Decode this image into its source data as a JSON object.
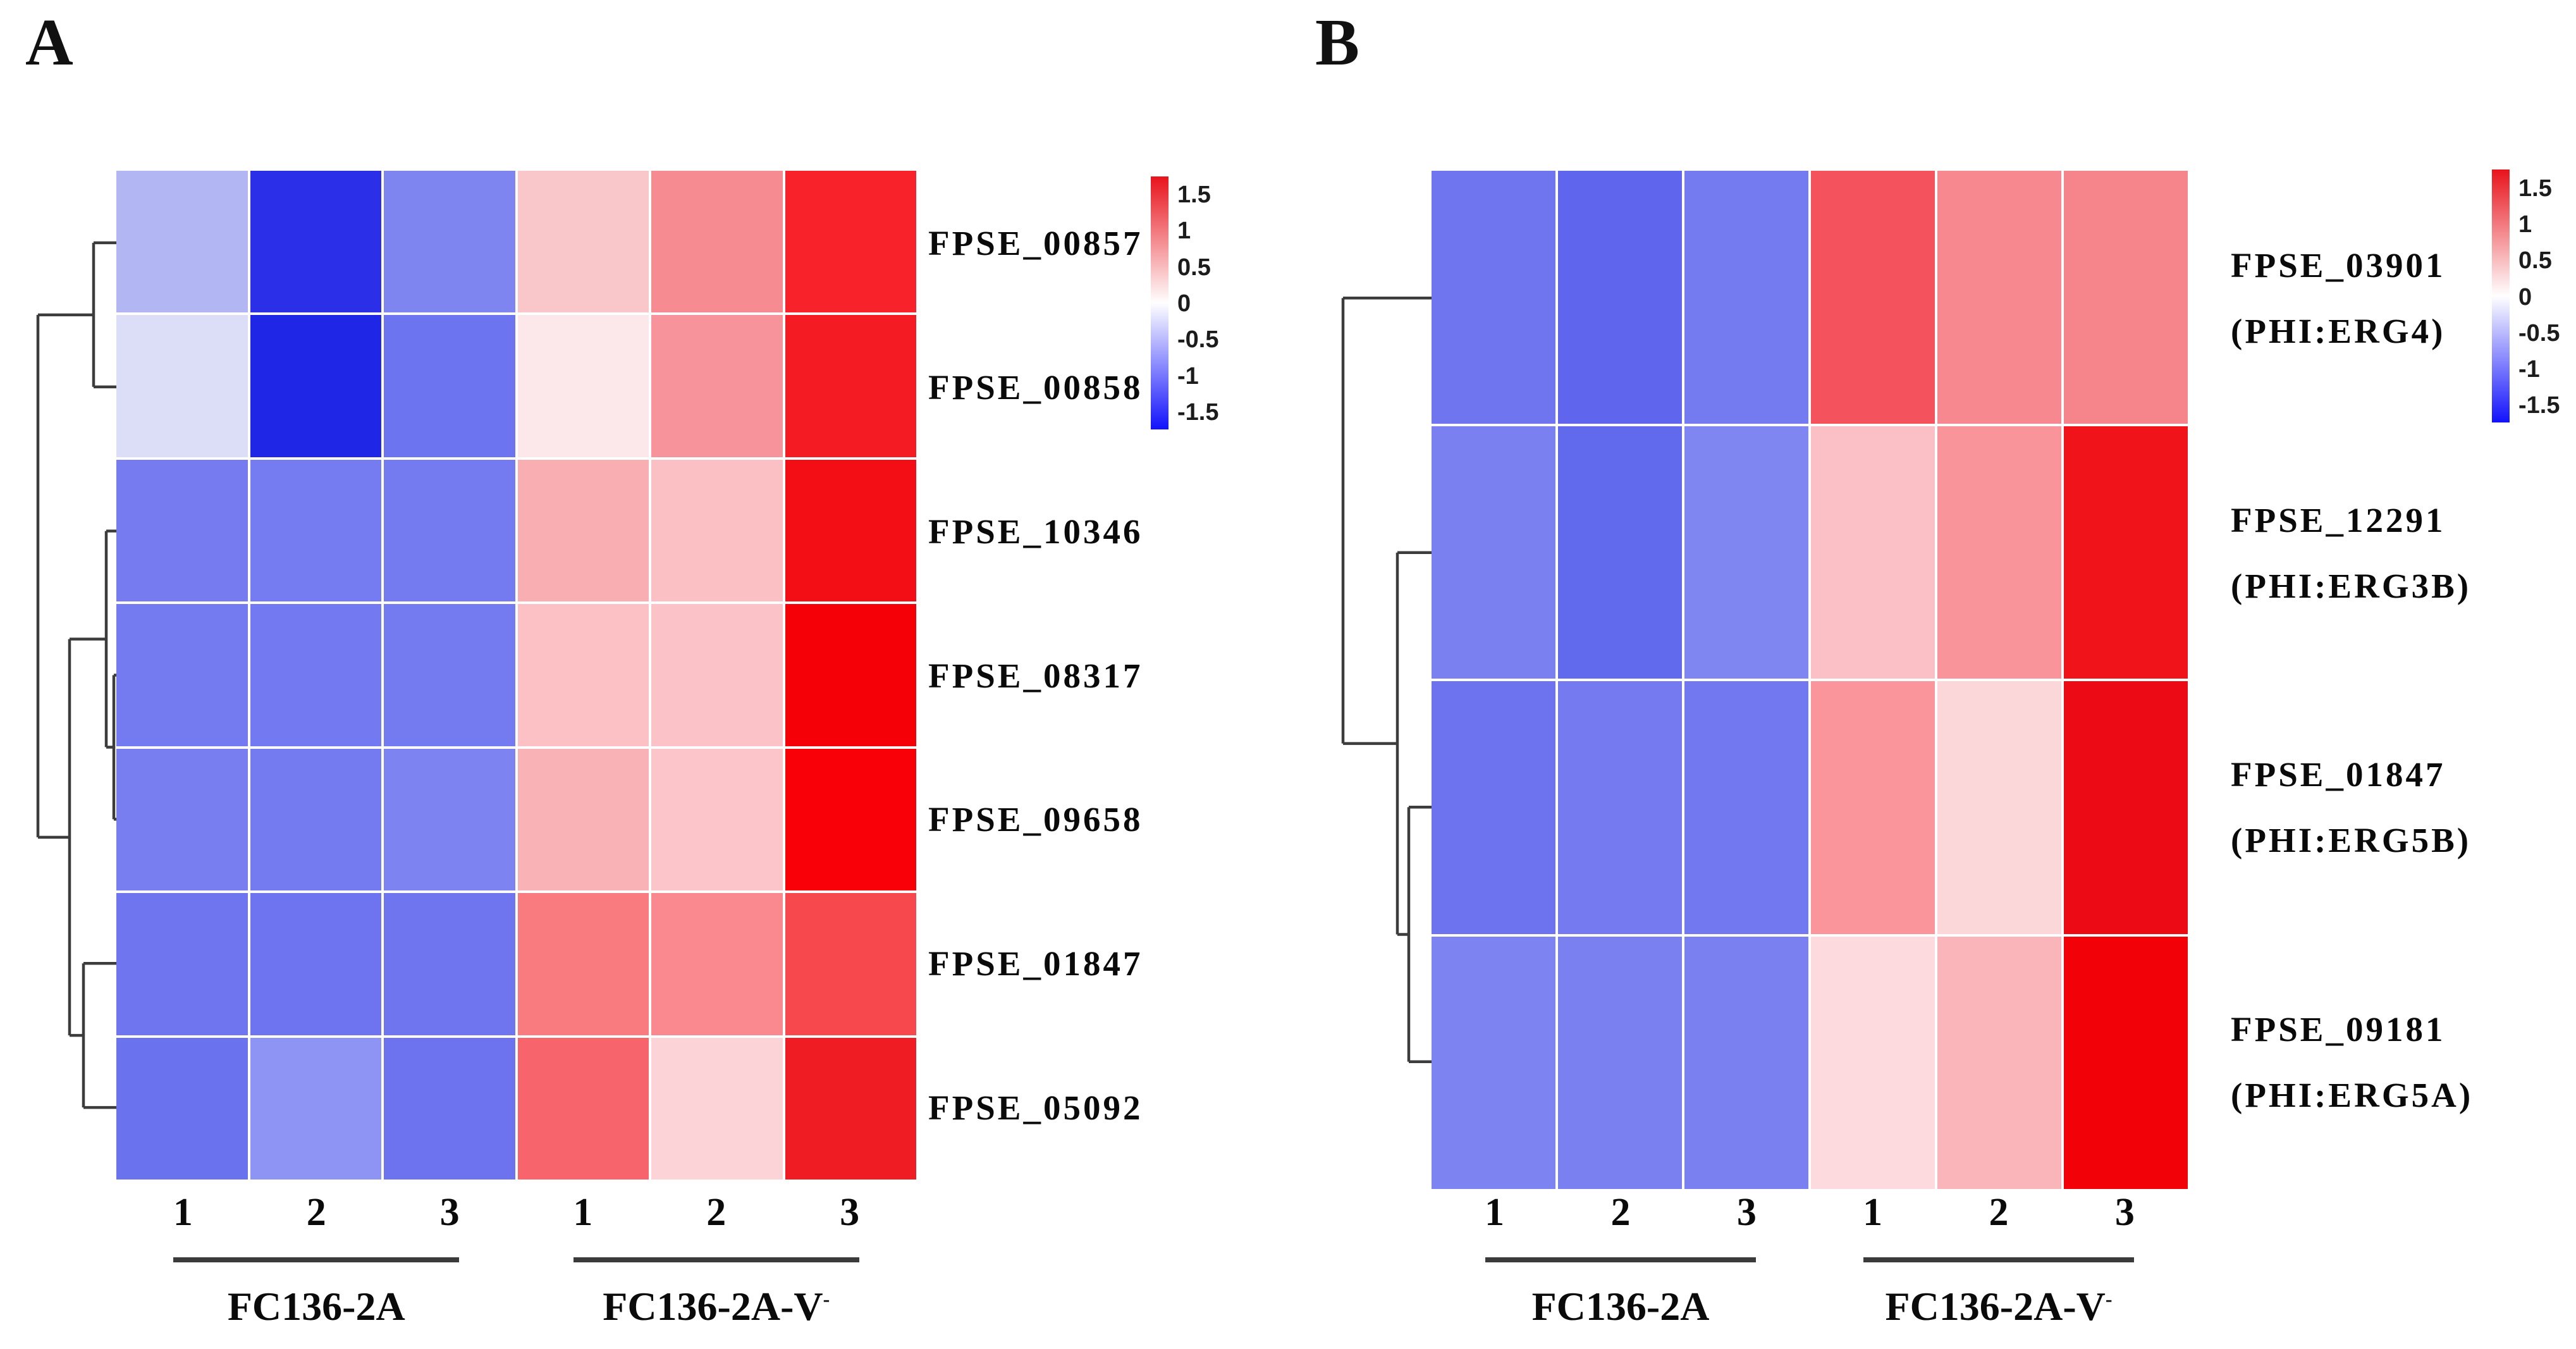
{
  "figure": {
    "background": "#ffffff",
    "description_visible_text_only": true
  },
  "chart_data": [
    {
      "type": "heatmap",
      "panel": "A",
      "columns": [
        "1",
        "2",
        "3",
        "1",
        "2",
        "3"
      ],
      "column_groups": [
        {
          "label": "FC136-2A",
          "superscript": "",
          "span": [
            0,
            2
          ]
        },
        {
          "label": "FC136-2A-V",
          "superscript": "-",
          "span": [
            3,
            5
          ]
        }
      ],
      "rows": [
        "FPSE_00857",
        "FPSE_00858",
        "FPSE_10346",
        "FPSE_08317",
        "FPSE_09658",
        "FPSE_01847",
        "FPSE_05092"
      ],
      "row_aliases": [
        "",
        "",
        "",
        "",
        "",
        "",
        ""
      ],
      "values": [
        [
          -0.4,
          -1.4,
          -0.75,
          0.3,
          0.65,
          1.3
        ],
        [
          -0.15,
          -1.5,
          -0.85,
          0.1,
          0.6,
          1.35
        ],
        [
          -0.8,
          -0.8,
          -0.8,
          0.45,
          0.35,
          1.45
        ],
        [
          -0.8,
          -0.8,
          -0.8,
          0.33,
          0.32,
          1.5
        ],
        [
          -0.78,
          -0.8,
          -0.73,
          0.42,
          0.31,
          1.5
        ],
        [
          -0.85,
          -0.85,
          -0.85,
          0.72,
          0.65,
          1.1
        ],
        [
          -0.9,
          -0.6,
          -0.87,
          0.85,
          0.24,
          1.32
        ]
      ],
      "cell_colors": [
        [
          "#b2b7f3",
          "#2b2fe8",
          "#7e85f1",
          "#f9c6ca",
          "#f68b91",
          "#f8232a"
        ],
        [
          "#dcdef8",
          "#1f26e6",
          "#6d74ef",
          "#fce8ea",
          "#f7939b",
          "#f41b22"
        ],
        [
          "#767cf0",
          "#757bf0",
          "#747af0",
          "#f9aeb2",
          "#fbc0c4",
          "#f30d14"
        ],
        [
          "#747af0",
          "#7379f0",
          "#747af0",
          "#fbc1c5",
          "#fbc3c7",
          "#f60008"
        ],
        [
          "#787ef0",
          "#747af0",
          "#7d83f1",
          "#f9b2b6",
          "#fbc5c9",
          "#f90008"
        ],
        [
          "#6f75ef",
          "#6e74ef",
          "#6f75ef",
          "#f97b80",
          "#f9898f",
          "#f7484e"
        ],
        [
          "#6b72ee",
          "#8d94f3",
          "#6d73ef",
          "#f8646c",
          "#fcd3d6",
          "#f01c23"
        ]
      ],
      "legend": {
        "ticks": [
          "1.5",
          "1",
          "0.5",
          "0",
          "-0.5",
          "-1",
          "-1.5"
        ],
        "min": -1.5,
        "max": 1.5,
        "position": "top-right",
        "colors": {
          "high": "#e8131c",
          "zero": "#ffffff",
          "low": "#1212fc"
        }
      },
      "dendrogram": {
        "side": "left",
        "linkage": [
          [
            "L0",
            "L1"
          ],
          [
            "L3",
            "L4"
          ],
          [
            "L2",
            "M1"
          ],
          [
            "L5",
            "L6"
          ],
          [
            "M2",
            "M3"
          ],
          [
            "M0",
            "M4"
          ]
        ]
      },
      "grid": true
    },
    {
      "type": "heatmap",
      "panel": "B",
      "columns": [
        "1",
        "2",
        "3",
        "1",
        "2",
        "3"
      ],
      "column_groups": [
        {
          "label": "FC136-2A",
          "superscript": "",
          "span": [
            0,
            2
          ]
        },
        {
          "label": "FC136-2A-V",
          "superscript": "-",
          "span": [
            3,
            5
          ]
        }
      ],
      "rows": [
        "FPSE_03901",
        "FPSE_12291",
        "FPSE_01847",
        "FPSE_09181"
      ],
      "row_aliases": [
        "(PHI:ERG4)",
        "(PHI:ERG3B)",
        "(PHI:ERG5B)",
        "(PHI:ERG5A)"
      ],
      "values": [
        [
          -0.85,
          -0.95,
          -0.8,
          0.95,
          0.65,
          0.67
        ],
        [
          -0.78,
          -0.93,
          -0.7,
          0.33,
          0.58,
          1.4
        ],
        [
          -0.88,
          -0.8,
          -0.83,
          0.58,
          0.22,
          1.45
        ],
        [
          -0.73,
          -0.76,
          -0.76,
          0.2,
          0.4,
          1.5
        ]
      ],
      "cell_colors": [
        [
          "#6f75ef",
          "#5f66ed",
          "#747af0",
          "#f4525c",
          "#f8888f",
          "#f5858b"
        ],
        [
          "#7a80f0",
          "#6169ed",
          "#7f85f1",
          "#fbc0c5",
          "#f9949b",
          "#f01319"
        ],
        [
          "#6d73ef",
          "#757af0",
          "#7278f0",
          "#f9959b",
          "#fcd7da",
          "#ec0b15"
        ],
        [
          "#7d83f1",
          "#7a80f0",
          "#7a80f0",
          "#fcdadd",
          "#fab5ba",
          "#f20109"
        ]
      ],
      "legend": {
        "ticks": [
          "1.5",
          "1",
          "0.5",
          "0",
          "-0.5",
          "-1",
          "-1.5"
        ],
        "min": -1.5,
        "max": 1.5,
        "position": "top-right",
        "colors": {
          "high": "#e8131c",
          "zero": "#ffffff",
          "low": "#1212fc"
        }
      },
      "dendrogram": {
        "side": "left",
        "linkage": [
          [
            "L2",
            "L3"
          ],
          [
            "L1",
            "M0"
          ],
          [
            "L0",
            "M1"
          ]
        ]
      },
      "grid": true
    }
  ]
}
